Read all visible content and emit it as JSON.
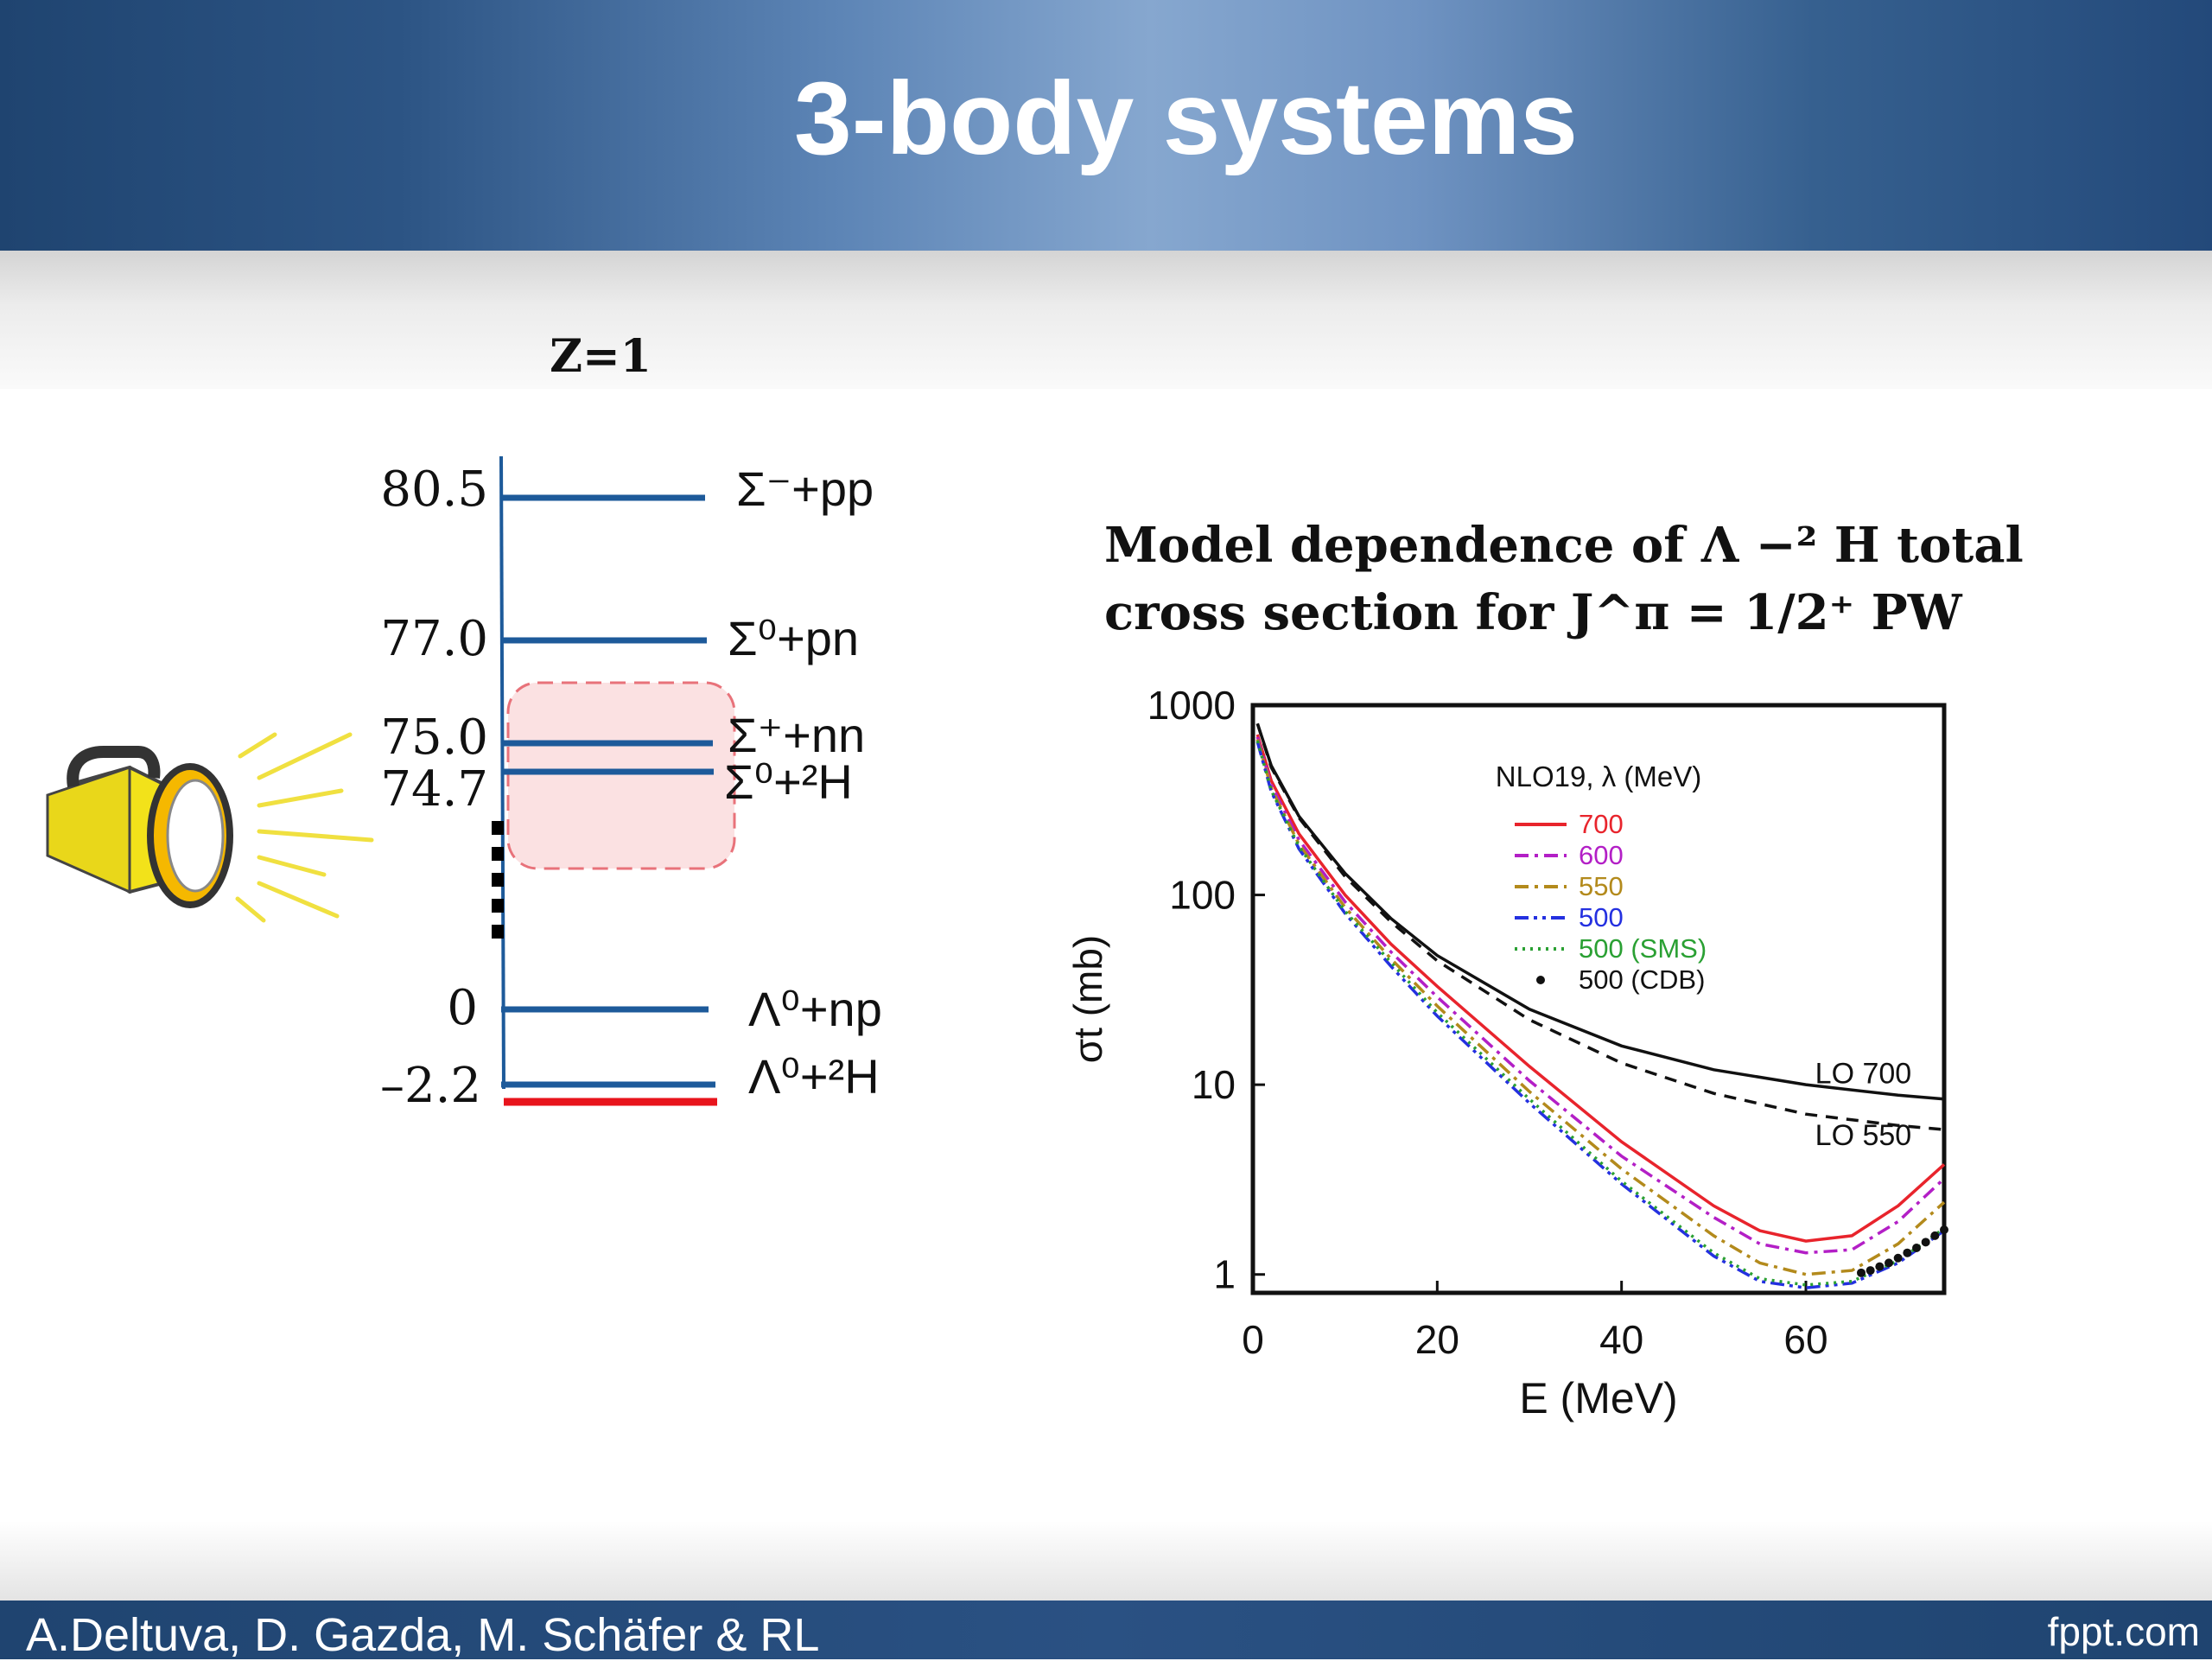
{
  "slide": {
    "title": "3-body systems",
    "footer_authors": "A.Deltuva, D. Gazda, M. Schäfer & RL",
    "footer_brand": "fppt.com",
    "colors": {
      "header_blue": "#2c5484",
      "level_blue": "#1d5a9a",
      "ground_red": "#e8141c",
      "highlight_fill": "#fbe1e2",
      "lamp_yellow": "#f2e21a"
    }
  },
  "level_diagram": {
    "charge_label": "Z=1",
    "icon": "flashlight-icon",
    "levels": [
      {
        "energy_label": "80.5",
        "channel_label": "Σ⁻+pp"
      },
      {
        "energy_label": "77.0",
        "channel_label": "Σ⁰+pn"
      },
      {
        "energy_label": "75.0",
        "channel_label": "Σ⁺+nn"
      },
      {
        "energy_label": "74.7",
        "channel_label": "Σ⁰+²H"
      },
      {
        "energy_label": "0",
        "channel_label": "Λ⁰+np"
      },
      {
        "energy_label": "–2.2",
        "channel_label": "Λ⁰+²H"
      }
    ]
  },
  "chart_heading": {
    "line1": "Model dependence of Λ −² H total",
    "line2": "cross section for J^π = 1/2⁺ PW"
  },
  "chart_data": {
    "type": "line",
    "xlabel": "E (MeV)",
    "ylabel": "σt (mb)",
    "xlim": [
      0,
      75
    ],
    "ylim": [
      0.8,
      1000
    ],
    "yscale": "log",
    "xticks": [
      "0",
      "20",
      "40",
      "60"
    ],
    "yticks": [
      "1",
      "10",
      "100",
      "1000"
    ],
    "legend_title": "NLO19, λ (MeV)",
    "legend_position": "top-center",
    "series": [
      {
        "name": "700",
        "color": "#e8242c",
        "dash": "solid",
        "x": [
          0.5,
          2,
          5,
          10,
          15,
          20,
          30,
          40,
          50,
          55,
          60,
          65,
          70,
          75
        ],
        "y": [
          700,
          400,
          210,
          100,
          55,
          33,
          12.5,
          5,
          2.3,
          1.7,
          1.5,
          1.6,
          2.3,
          3.8
        ]
      },
      {
        "name": "600",
        "color": "#b31fc6",
        "dash": "dashdot",
        "x": [
          0.5,
          2,
          5,
          10,
          15,
          20,
          30,
          40,
          50,
          55,
          60,
          65,
          70,
          75
        ],
        "y": [
          680,
          380,
          195,
          92,
          50,
          29,
          10.5,
          4.2,
          2.0,
          1.45,
          1.3,
          1.35,
          1.9,
          3.2
        ]
      },
      {
        "name": "550",
        "color": "#b38a1c",
        "dash": "dashdot",
        "x": [
          0.5,
          2,
          5,
          10,
          15,
          20,
          30,
          40,
          50,
          55,
          60,
          65,
          70,
          75
        ],
        "y": [
          660,
          365,
          185,
          86,
          46,
          26,
          9.2,
          3.6,
          1.6,
          1.15,
          1.0,
          1.05,
          1.45,
          2.4
        ]
      },
      {
        "name": "500",
        "color": "#2430e0",
        "dash": "dashdotdot",
        "x": [
          0.5,
          2,
          5,
          10,
          15,
          20,
          30,
          40,
          50,
          55,
          60,
          65,
          70,
          75
        ],
        "y": [
          640,
          350,
          175,
          80,
          42,
          23,
          8.0,
          3.0,
          1.25,
          0.92,
          0.85,
          0.9,
          1.15,
          1.7
        ]
      },
      {
        "name": "500 (SMS)",
        "color": "#2aa033",
        "dash": "dotted",
        "x": [
          0.5,
          2,
          5,
          10,
          15,
          20,
          30,
          40,
          50,
          55,
          60,
          65,
          70,
          75
        ],
        "y": [
          650,
          355,
          180,
          82,
          44,
          24,
          8.4,
          3.1,
          1.3,
          0.95,
          0.88,
          0.92,
          1.18,
          1.75
        ]
      },
      {
        "name": "500 (CDB)",
        "color": "#111111",
        "dash": "points",
        "x": [
          66,
          67,
          68,
          69,
          70,
          71,
          72,
          73,
          74,
          75
        ],
        "y": [
          1.02,
          1.05,
          1.1,
          1.15,
          1.22,
          1.3,
          1.38,
          1.48,
          1.6,
          1.72
        ]
      },
      {
        "name": "LO 700",
        "color": "#111111",
        "dash": "solid",
        "x": [
          0.5,
          2,
          5,
          10,
          15,
          20,
          30,
          40,
          50,
          60,
          70,
          75
        ],
        "y": [
          800,
          480,
          260,
          130,
          75,
          48,
          25,
          16,
          12,
          10,
          8.8,
          8.4
        ]
      },
      {
        "name": "LO 550",
        "color": "#111111",
        "dash": "dashed",
        "x": [
          0.5,
          2,
          5,
          10,
          15,
          20,
          30,
          40,
          50,
          60,
          70,
          75
        ],
        "y": [
          800,
          470,
          255,
          125,
          72,
          45,
          22,
          13,
          9,
          7,
          6.1,
          5.8
        ]
      }
    ],
    "annotations": [
      {
        "text": "LO 700",
        "x": 61,
        "y": 10.2
      },
      {
        "text": "LO 550",
        "x": 61,
        "y": 4.8
      }
    ]
  }
}
